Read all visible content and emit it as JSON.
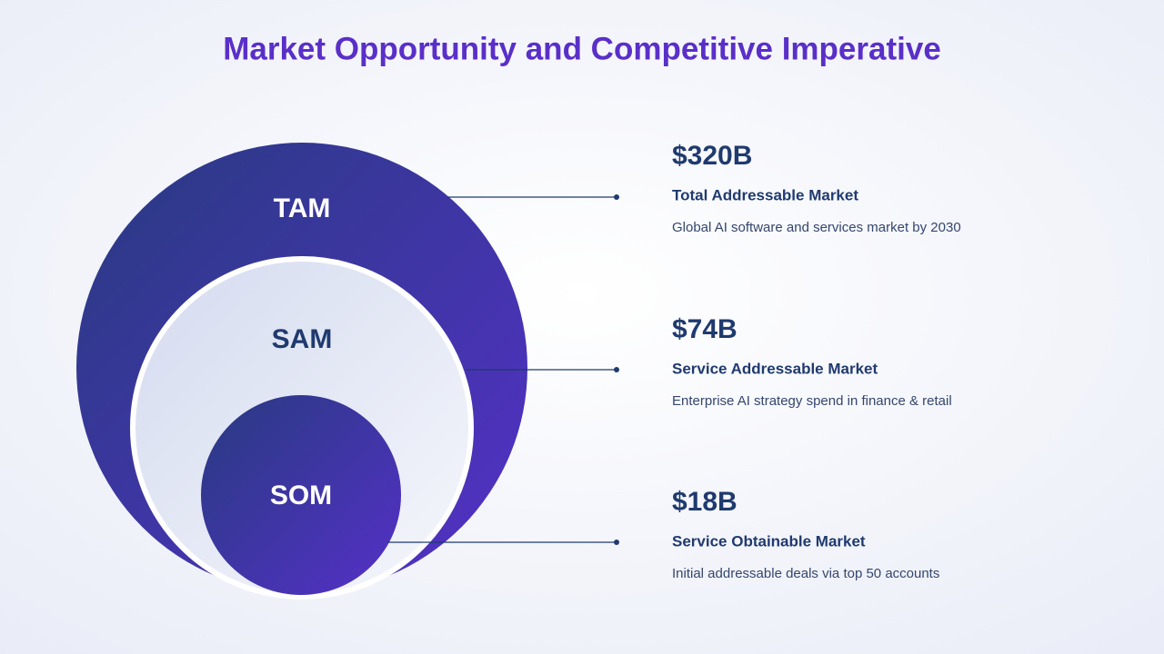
{
  "title": "Market Opportunity and Competitive Imperative",
  "circles": [
    {
      "label": "TAM"
    },
    {
      "label": "SAM"
    },
    {
      "label": "SOM"
    }
  ],
  "items": [
    {
      "value": "$320B",
      "name": "Total Addressable Market",
      "description": "Global AI software and services market by 2030"
    },
    {
      "value": "$74B",
      "name": "Service Addressable Market",
      "description": "Enterprise AI strategy spend in finance & retail"
    },
    {
      "value": "$18B",
      "name": "Service Obtainable Market",
      "description": "Initial addressable deals via top 50 accounts"
    }
  ]
}
